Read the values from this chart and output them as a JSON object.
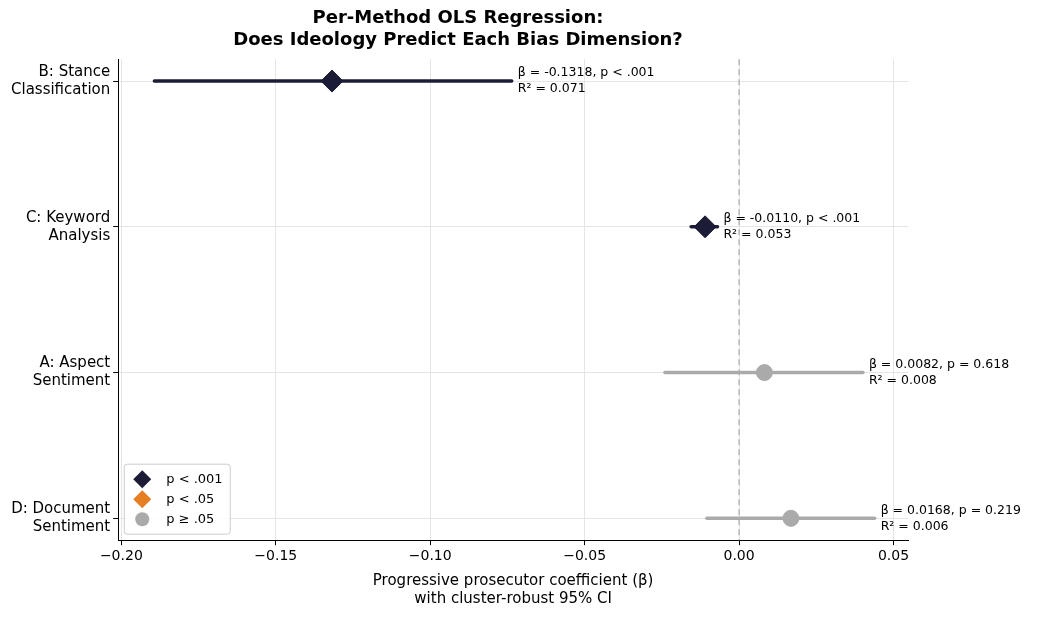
{
  "chart_data": {
    "type": "scatter",
    "orientation": "horizontal",
    "title": "Per-Method OLS Regression:\nDoes Ideology Predict Each Bias Dimension?",
    "xlabel": "Progressive prosecutor coefficient (β)\nwith cluster-robust 95% CI",
    "categories": [
      "B: Stance Classification",
      "C: Keyword Analysis",
      "A: Aspect Sentiment",
      "D: Document Sentiment"
    ],
    "xlim": [
      -0.201,
      0.0547
    ],
    "xticks": [
      {
        "value": -0.2,
        "label": "−0.20"
      },
      {
        "value": -0.15,
        "label": "−0.15"
      },
      {
        "value": -0.1,
        "label": "−0.10"
      },
      {
        "value": -0.05,
        "label": "−0.05"
      },
      {
        "value": 0,
        "label": "0.00"
      },
      {
        "value": 0.05,
        "label": "0.05"
      }
    ],
    "series": [
      {
        "name": "p < .001",
        "color": "#1c1c36",
        "marker": "diamond",
        "values": [
          -0.1318,
          -0.011,
          null,
          null
        ],
        "errors": [
          [
            -0.1893,
            -0.0736
          ],
          [
            -0.0155,
            -0.007
          ],
          null,
          null
        ]
      },
      {
        "name": "p < .05",
        "color": "#e67e22",
        "marker": "diamond",
        "values": [
          null,
          null,
          null,
          null
        ]
      },
      {
        "name": "p ≥ .05",
        "color": "#aaaaaa",
        "marker": "circle",
        "values": [
          null,
          null,
          0.0082,
          0.0168
        ],
        "errors": [
          null,
          null,
          [
            -0.024,
            0.0401
          ],
          [
            -0.0104,
            0.0439
          ]
        ]
      }
    ],
    "annotations": [
      {
        "text": "β = -0.1318, p < .001\nR² = 0.071",
        "x": -0.0736,
        "y": "B: Stance Classification"
      },
      {
        "text": "β = -0.0110, p < .001\nR² = 0.053",
        "x": -0.007,
        "y": "C: Keyword Analysis"
      },
      {
        "text": "β = 0.0082, p = 0.618\nR² = 0.008",
        "x": 0.0401,
        "y": "A: Aspect Sentiment"
      },
      {
        "text": "β = 0.0168, p = 0.219\nR² = 0.006",
        "x": 0.0439,
        "y": "D: Document Sentiment"
      }
    ],
    "ref_lines": [
      {
        "axis": "x",
        "value": 0,
        "color": "#aaaaaa",
        "line_style": "dashed"
      }
    ],
    "grid": true,
    "legend": "bottom left"
  }
}
